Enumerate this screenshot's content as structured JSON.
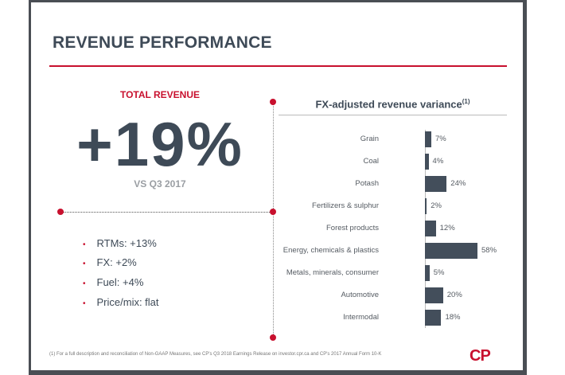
{
  "title": "REVENUE PERFORMANCE",
  "total": {
    "label": "TOTAL REVENUE",
    "value": "+19%",
    "compare": "VS Q3 2017"
  },
  "bullets": [
    "RTMs: +13%",
    "FX: +2%",
    "Fuel: +4%",
    "Price/mix: flat"
  ],
  "footnote": "(1)    For a full description and reconciliation of Non-GAAP Measures, see CP's Q3 2018 Earnings Release on investor.cpr.ca and CP's 2017 Annual Form 10-K",
  "logo": "CP",
  "colors": {
    "accent": "#c8102e",
    "bar": "#434e5b",
    "text": "#3e4a57"
  },
  "chart_data": {
    "type": "bar",
    "orientation": "horizontal",
    "title": "FX-adjusted revenue variance",
    "title_sup": "(1)",
    "categories": [
      "Grain",
      "Coal",
      "Potash",
      "Fertilizers & sulphur",
      "Forest products",
      "Energy, chemicals & plastics",
      "Metals, minerals, consumer",
      "Automotive",
      "Intermodal"
    ],
    "values": [
      7,
      4,
      24,
      2,
      12,
      58,
      5,
      20,
      18
    ],
    "labels": [
      "7%",
      "4%",
      "24%",
      "2%",
      "12%",
      "58%",
      "5%",
      "20%",
      "18%"
    ],
    "unit": "%",
    "grid": false
  }
}
